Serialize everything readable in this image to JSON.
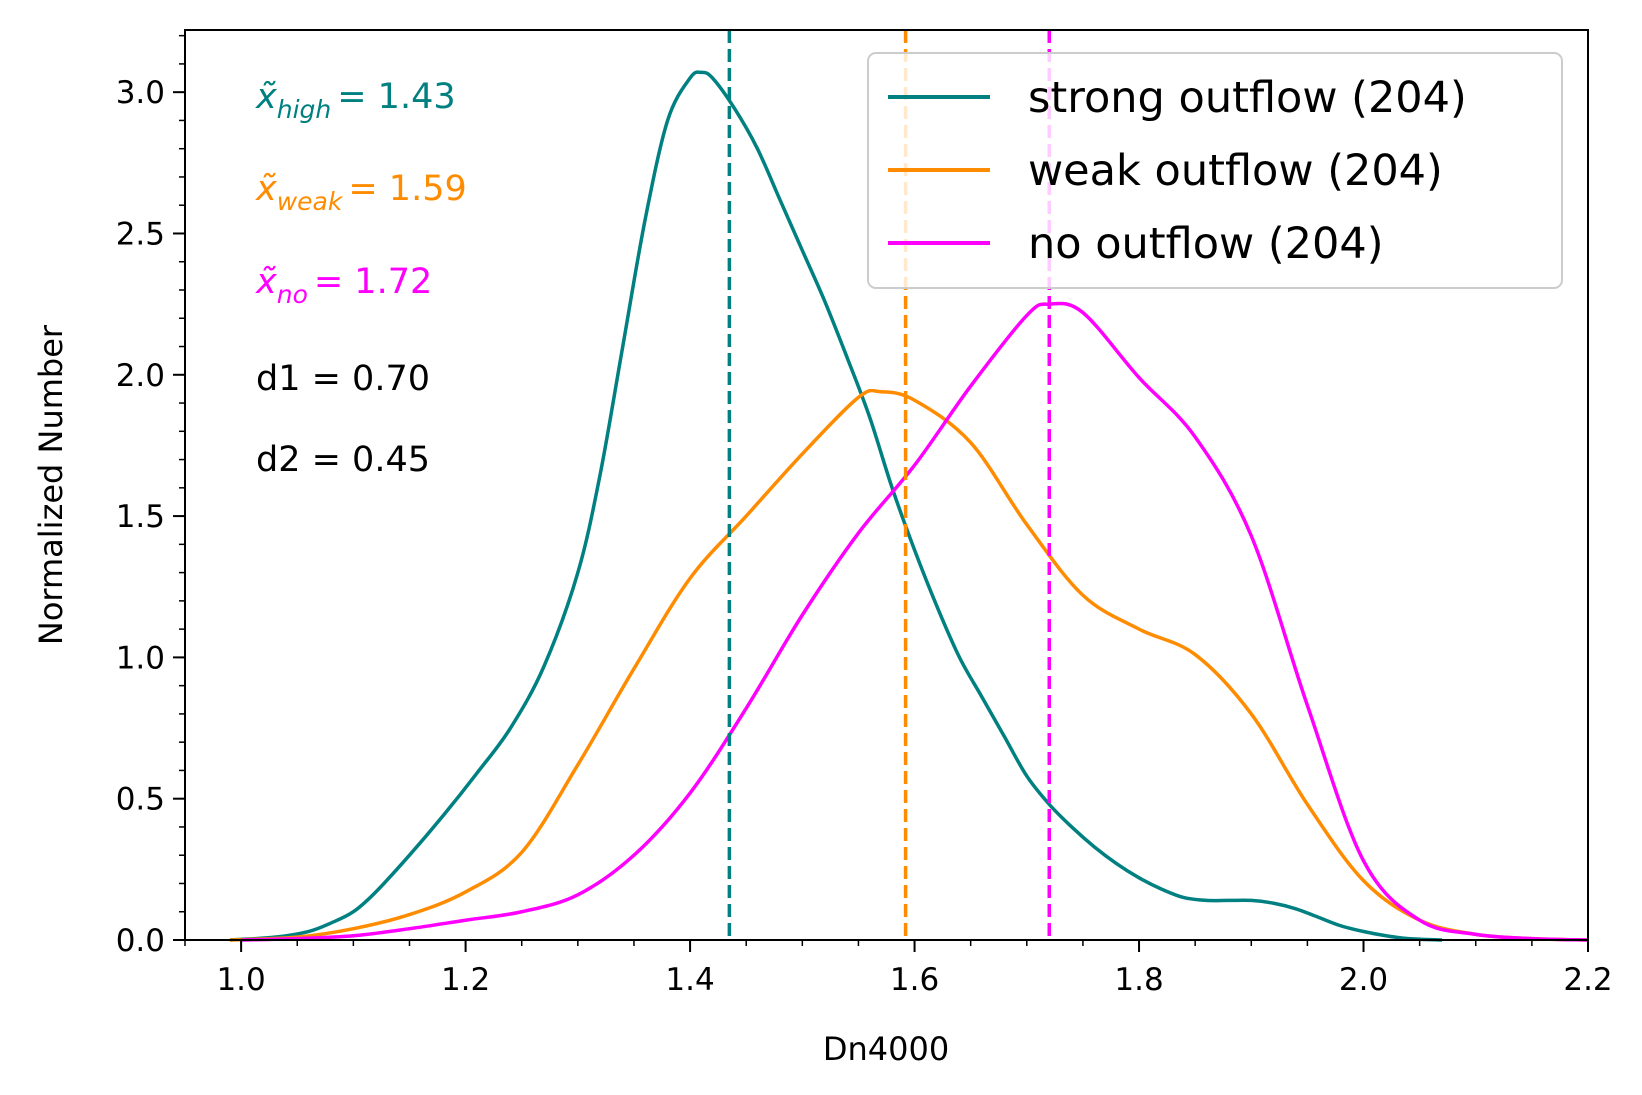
{
  "chart_data": {
    "type": "line",
    "title": "",
    "xlabel": "Dn4000",
    "ylabel": "Normalized Number",
    "xlim": [
      0.95,
      2.2
    ],
    "ylim": [
      0.0,
      3.22
    ],
    "x_ticks": [
      1.0,
      1.2,
      1.4,
      1.6,
      1.8,
      2.0,
      2.2
    ],
    "x_tick_labels": [
      "1.0",
      "1.2",
      "1.4",
      "1.6",
      "1.8",
      "2.0",
      "2.2"
    ],
    "y_ticks": [
      0.0,
      0.5,
      1.0,
      1.5,
      2.0,
      2.5,
      3.0
    ],
    "y_tick_labels": [
      "0.0",
      "0.5",
      "1.0",
      "1.5",
      "2.0",
      "2.5",
      "3.0"
    ],
    "x_minor_step": 0.05,
    "y_minor_step": 0.1,
    "grid": false,
    "legend_position": "top-right",
    "series": [
      {
        "name": "strong outflow (204)",
        "color": "#008080",
        "median": 1.435,
        "x": [
          0.99,
          1.03,
          1.06,
          1.08,
          1.1,
          1.12,
          1.15,
          1.18,
          1.21,
          1.24,
          1.27,
          1.3,
          1.32,
          1.34,
          1.36,
          1.38,
          1.4,
          1.41,
          1.42,
          1.44,
          1.46,
          1.48,
          1.5,
          1.52,
          1.54,
          1.56,
          1.58,
          1.6,
          1.62,
          1.64,
          1.66,
          1.68,
          1.7,
          1.72,
          1.74,
          1.76,
          1.78,
          1.8,
          1.82,
          1.84,
          1.86,
          1.88,
          1.9,
          1.92,
          1.94,
          1.96,
          1.98,
          2.0,
          2.02,
          2.04,
          2.07
        ],
        "y": [
          0.0,
          0.01,
          0.03,
          0.06,
          0.1,
          0.17,
          0.3,
          0.44,
          0.59,
          0.75,
          0.97,
          1.3,
          1.65,
          2.1,
          2.55,
          2.9,
          3.05,
          3.07,
          3.05,
          2.94,
          2.8,
          2.62,
          2.44,
          2.26,
          2.06,
          1.85,
          1.6,
          1.38,
          1.18,
          1.0,
          0.86,
          0.72,
          0.58,
          0.48,
          0.4,
          0.33,
          0.27,
          0.22,
          0.18,
          0.15,
          0.14,
          0.14,
          0.14,
          0.13,
          0.11,
          0.08,
          0.05,
          0.03,
          0.015,
          0.005,
          0.0
        ]
      },
      {
        "name": "weak outflow (204)",
        "color": "#FF8C00",
        "median": 1.592,
        "x": [
          0.99,
          1.05,
          1.1,
          1.15,
          1.2,
          1.25,
          1.3,
          1.35,
          1.4,
          1.45,
          1.5,
          1.55,
          1.57,
          1.6,
          1.65,
          1.7,
          1.75,
          1.8,
          1.85,
          1.9,
          1.95,
          2.0,
          2.05,
          2.1,
          2.15,
          2.2
        ],
        "y": [
          0.0,
          0.01,
          0.04,
          0.09,
          0.17,
          0.31,
          0.62,
          0.96,
          1.28,
          1.5,
          1.72,
          1.92,
          1.94,
          1.91,
          1.76,
          1.47,
          1.22,
          1.1,
          1.01,
          0.8,
          0.48,
          0.21,
          0.07,
          0.02,
          0.005,
          0.0
        ]
      },
      {
        "name": "no outflow (204)",
        "color": "#FF00FF",
        "median": 1.72,
        "x": [
          1.0,
          1.05,
          1.1,
          1.15,
          1.2,
          1.25,
          1.3,
          1.35,
          1.4,
          1.45,
          1.5,
          1.55,
          1.6,
          1.65,
          1.7,
          1.72,
          1.75,
          1.8,
          1.85,
          1.9,
          1.95,
          2.0,
          2.05,
          2.1,
          2.15,
          2.2
        ],
        "y": [
          0.0,
          0.005,
          0.015,
          0.04,
          0.07,
          0.1,
          0.16,
          0.3,
          0.52,
          0.82,
          1.15,
          1.44,
          1.68,
          1.96,
          2.21,
          2.25,
          2.22,
          1.99,
          1.78,
          1.43,
          0.83,
          0.28,
          0.07,
          0.02,
          0.005,
          0.0
        ]
      }
    ],
    "annotations": {
      "medians": [
        {
          "symbol": "x̃",
          "subscript": "high",
          "value_text": "= 1.43",
          "color": "#008080"
        },
        {
          "symbol": "x̃",
          "subscript": "weak",
          "value_text": "= 1.59",
          "color": "#FF8C00"
        },
        {
          "symbol": "x̃",
          "subscript": "no",
          "value_text": "= 1.72",
          "color": "#FF00FF"
        }
      ],
      "stats": [
        "d1 = 0.70",
        "d2 = 0.45"
      ]
    }
  }
}
